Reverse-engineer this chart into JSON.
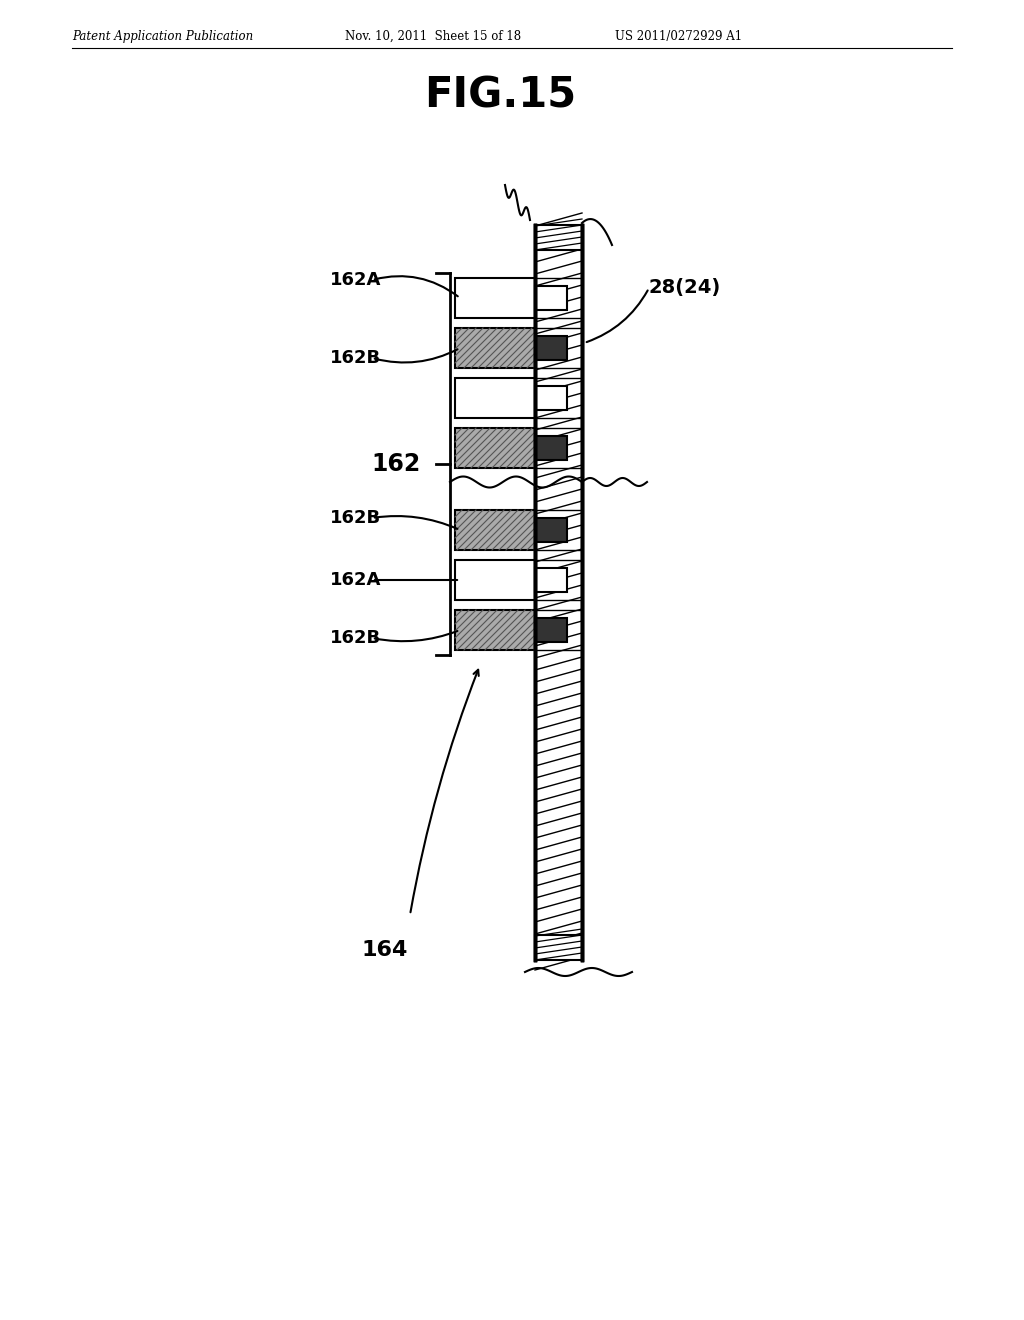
{
  "title": "FIG.15",
  "header_left": "Patent Application Publication",
  "header_mid": "Nov. 10, 2011  Sheet 15 of 18",
  "header_right": "US 2011/0272929 A1",
  "label_162": "162",
  "label_164": "164",
  "label_28_24": "28(24)",
  "label_162A_1": "162A",
  "label_162B_1": "162B",
  "label_162B_2": "162B",
  "label_162A_2": "162A",
  "label_162B_3": "162B",
  "bg_color": "#ffffff",
  "line_color": "#000000",
  "fig_width": 10.24,
  "fig_height": 13.2,
  "dpi": 100
}
